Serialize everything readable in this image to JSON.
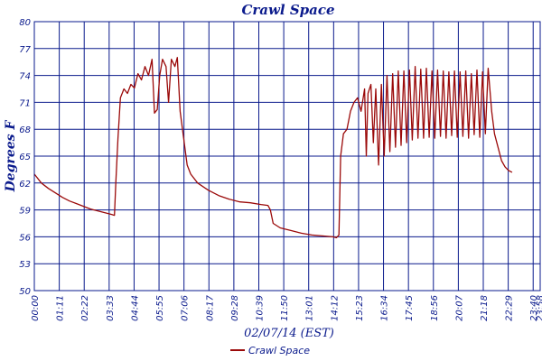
{
  "chart_data": {
    "type": "line",
    "title": "Crawl Space",
    "xlabel": "02/07/14 (EST)",
    "ylabel": "Degrees F",
    "ylim": [
      50,
      80
    ],
    "yticks": [
      50,
      53,
      56,
      59,
      62,
      65,
      68,
      71,
      74,
      77,
      80
    ],
    "xticks": [
      "00:00",
      "01:11",
      "02:22",
      "03:33",
      "04:44",
      "05:55",
      "07:06",
      "08:17",
      "09:28",
      "10:39",
      "11:50",
      "13:01",
      "14:12",
      "15:23",
      "16:34",
      "17:45",
      "18:56",
      "20:07",
      "21:18",
      "22:29",
      "23:40",
      "23:58"
    ],
    "grid": true,
    "legend": "bottom",
    "series": [
      {
        "name": "Crawl Space",
        "color": "#9b0a0a",
        "points": [
          [
            "00:00",
            63.0
          ],
          [
            "00:20",
            62.0
          ],
          [
            "00:40",
            61.4
          ],
          [
            "01:00",
            60.9
          ],
          [
            "01:20",
            60.4
          ],
          [
            "01:40",
            60.0
          ],
          [
            "02:00",
            59.7
          ],
          [
            "02:20",
            59.4
          ],
          [
            "02:40",
            59.1
          ],
          [
            "03:00",
            58.9
          ],
          [
            "03:20",
            58.7
          ],
          [
            "03:40",
            58.5
          ],
          [
            "03:48",
            58.4
          ],
          [
            "03:52",
            62.0
          ],
          [
            "03:58",
            67.0
          ],
          [
            "04:05",
            71.5
          ],
          [
            "04:15",
            72.5
          ],
          [
            "04:25",
            72.0
          ],
          [
            "04:35",
            73.0
          ],
          [
            "04:45",
            72.6
          ],
          [
            "04:55",
            74.2
          ],
          [
            "05:05",
            73.5
          ],
          [
            "05:15",
            75.0
          ],
          [
            "05:25",
            74.0
          ],
          [
            "05:35",
            75.8
          ],
          [
            "05:42",
            69.8
          ],
          [
            "05:50",
            70.2
          ],
          [
            "05:57",
            74.0
          ],
          [
            "06:05",
            75.8
          ],
          [
            "06:15",
            75.0
          ],
          [
            "06:22",
            71.0
          ],
          [
            "06:30",
            75.8
          ],
          [
            "06:40",
            75.0
          ],
          [
            "06:47",
            76.0
          ],
          [
            "06:55",
            70.0
          ],
          [
            "07:05",
            67.0
          ],
          [
            "07:15",
            64.0
          ],
          [
            "07:25",
            63.0
          ],
          [
            "07:45",
            62.0
          ],
          [
            "08:15",
            61.2
          ],
          [
            "08:45",
            60.6
          ],
          [
            "09:15",
            60.2
          ],
          [
            "09:45",
            59.9
          ],
          [
            "10:15",
            59.8
          ],
          [
            "10:45",
            59.6
          ],
          [
            "11:05",
            59.5
          ],
          [
            "11:12",
            59.0
          ],
          [
            "11:20",
            57.5
          ],
          [
            "11:40",
            57.0
          ],
          [
            "12:10",
            56.7
          ],
          [
            "12:40",
            56.4
          ],
          [
            "13:10",
            56.2
          ],
          [
            "13:40",
            56.1
          ],
          [
            "14:10",
            56.0
          ],
          [
            "14:20",
            55.9
          ],
          [
            "14:27",
            56.2
          ],
          [
            "14:32",
            65.0
          ],
          [
            "14:40",
            67.5
          ],
          [
            "14:50",
            68.0
          ],
          [
            "15:00",
            70.0
          ],
          [
            "15:10",
            71.0
          ],
          [
            "15:20",
            71.5
          ],
          [
            "15:30",
            70.0
          ],
          [
            "15:40",
            72.5
          ],
          [
            "15:45",
            65.0
          ],
          [
            "15:50",
            72.0
          ],
          [
            "15:58",
            73.0
          ],
          [
            "16:05",
            66.5
          ],
          [
            "16:12",
            72.5
          ],
          [
            "16:20",
            64.0
          ],
          [
            "16:28",
            73.0
          ],
          [
            "16:36",
            65.0
          ],
          [
            "16:44",
            74.0
          ],
          [
            "16:52",
            65.5
          ],
          [
            "17:00",
            74.2
          ],
          [
            "17:08",
            66.0
          ],
          [
            "17:16",
            74.5
          ],
          [
            "17:24",
            66.2
          ],
          [
            "17:32",
            74.5
          ],
          [
            "17:40",
            66.5
          ],
          [
            "17:48",
            74.6
          ],
          [
            "17:56",
            66.8
          ],
          [
            "18:04",
            75.0
          ],
          [
            "18:12",
            67.0
          ],
          [
            "18:20",
            74.7
          ],
          [
            "18:28",
            67.0
          ],
          [
            "18:36",
            74.8
          ],
          [
            "18:44",
            67.1
          ],
          [
            "18:52",
            74.5
          ],
          [
            "19:00",
            67.0
          ],
          [
            "19:08",
            74.6
          ],
          [
            "19:16",
            67.2
          ],
          [
            "19:24",
            74.5
          ],
          [
            "19:32",
            67.0
          ],
          [
            "19:40",
            74.4
          ],
          [
            "19:48",
            67.3
          ],
          [
            "19:56",
            74.5
          ],
          [
            "20:04",
            67.1
          ],
          [
            "20:12",
            74.4
          ],
          [
            "20:20",
            67.2
          ],
          [
            "20:28",
            74.5
          ],
          [
            "20:36",
            67.0
          ],
          [
            "20:44",
            74.2
          ],
          [
            "20:52",
            67.4
          ],
          [
            "21:00",
            74.6
          ],
          [
            "21:08",
            67.1
          ],
          [
            "21:16",
            74.4
          ],
          [
            "21:24",
            67.5
          ],
          [
            "21:32",
            74.8
          ],
          [
            "21:42",
            70.0
          ],
          [
            "21:50",
            67.5
          ],
          [
            "22:00",
            66.0
          ],
          [
            "22:10",
            64.5
          ],
          [
            "22:20",
            63.8
          ],
          [
            "22:30",
            63.4
          ],
          [
            "22:40",
            63.2
          ]
        ]
      }
    ]
  }
}
